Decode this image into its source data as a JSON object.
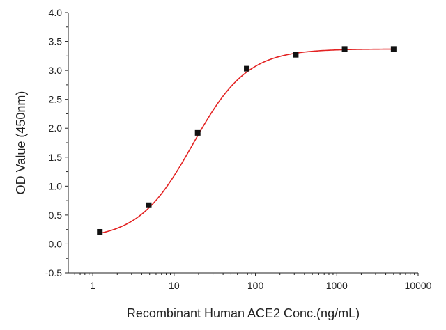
{
  "chart_data": {
    "type": "scatter",
    "title": "",
    "xlabel": "Recombinant Human ACE2 Conc.(ng/mL)",
    "ylabel": "OD Value (450nm)",
    "x_scale": "log",
    "xlim": [
      0.5,
      10000
    ],
    "ylim": [
      -0.5,
      4.0
    ],
    "x_ticks": [
      {
        "value": 1,
        "label": "1"
      },
      {
        "value": 10,
        "label": "10"
      },
      {
        "value": 100,
        "label": "100"
      },
      {
        "value": 1000,
        "label": "1000"
      },
      {
        "value": 10000,
        "label": "10000"
      }
    ],
    "y_ticks": [
      {
        "value": -0.5,
        "label": "-0.5"
      },
      {
        "value": 0.0,
        "label": "0.0"
      },
      {
        "value": 0.5,
        "label": "0.5"
      },
      {
        "value": 1.0,
        "label": "1.0"
      },
      {
        "value": 1.5,
        "label": "1.5"
      },
      {
        "value": 2.0,
        "label": "2.0"
      },
      {
        "value": 2.5,
        "label": "2.5"
      },
      {
        "value": 3.0,
        "label": "3.0"
      },
      {
        "value": 3.5,
        "label": "3.5"
      },
      {
        "value": 4.0,
        "label": "4.0"
      }
    ],
    "grid": false,
    "series": [
      {
        "kind": "points",
        "marker": "square",
        "color": "#111111",
        "x": [
          1.22,
          4.88,
          19.5,
          78.1,
          313,
          1250,
          5000
        ],
        "y": [
          0.21,
          0.67,
          1.92,
          3.03,
          3.27,
          3.37,
          3.37
        ]
      },
      {
        "kind": "fit-curve",
        "color": "#e32222",
        "model": "4PL",
        "bottom": 0.08,
        "top": 3.37,
        "ec50": 17,
        "hill": 1.3,
        "x_range": [
          1.22,
          5000
        ]
      }
    ]
  }
}
